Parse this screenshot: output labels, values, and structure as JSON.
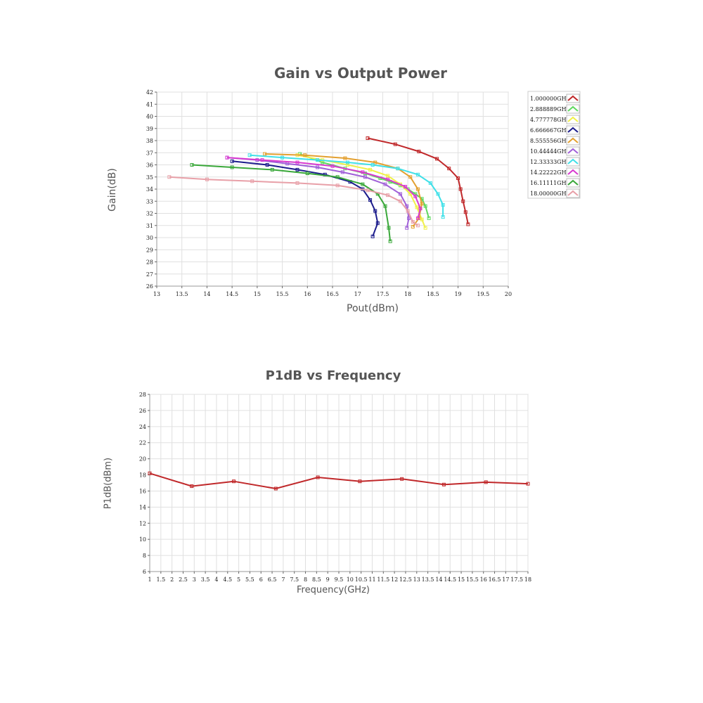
{
  "chart_data": [
    {
      "type": "line",
      "title": "Gain vs Output Power",
      "xlabel": "Pout(dBm)",
      "ylabel": "Gain(dB)",
      "xlim": [
        13,
        20
      ],
      "ylim": [
        26,
        42
      ],
      "xticks": [
        "13",
        "13.5",
        "14",
        "14.5",
        "15",
        "15.5",
        "16",
        "16.5",
        "17",
        "17.5",
        "18",
        "18.5",
        "19",
        "19.5",
        "20"
      ],
      "yticks": [
        "26",
        "27",
        "28",
        "29",
        "30",
        "31",
        "32",
        "33",
        "34",
        "35",
        "36",
        "37",
        "38",
        "39",
        "40",
        "41",
        "42"
      ],
      "grid": true,
      "legend": "right",
      "series": [
        {
          "name": "1.000000GHz",
          "color": "#c0282a",
          "x": [
            17.2,
            17.75,
            18.22,
            18.58,
            18.82,
            19.0,
            19.05,
            19.1,
            19.15,
            19.2
          ],
          "y": [
            38.2,
            37.7,
            37.1,
            36.5,
            35.7,
            34.9,
            34.0,
            33.0,
            32.1,
            31.1
          ]
        },
        {
          "name": "2.888889GHz",
          "color": "#5fd85f",
          "x": [
            15.85,
            16.3,
            16.75,
            17.15,
            17.45,
            17.65,
            17.85,
            18.0,
            18.15,
            18.28,
            18.35,
            18.42
          ],
          "y": [
            36.9,
            36.2,
            35.7,
            35.3,
            34.9,
            34.6,
            34.3,
            34.0,
            33.6,
            33.2,
            32.6,
            31.6
          ]
        },
        {
          "name": "4.777778GHz",
          "color": "#f0f04a",
          "x": [
            15.8,
            16.3,
            16.8,
            17.25,
            17.6,
            17.85,
            18.05,
            18.18,
            18.28,
            18.35
          ],
          "y": [
            36.8,
            36.4,
            36.0,
            35.6,
            35.1,
            34.4,
            33.6,
            32.5,
            31.5,
            30.8
          ]
        },
        {
          "name": "6.666667GHz",
          "color": "#1c1c8c",
          "x": [
            14.5,
            15.2,
            15.8,
            16.35,
            16.85,
            17.1,
            17.25,
            17.35,
            17.4,
            17.3
          ],
          "y": [
            36.3,
            36.0,
            35.6,
            35.2,
            34.6,
            34.0,
            33.1,
            32.2,
            31.2,
            30.1
          ]
        },
        {
          "name": "8.555556GHz",
          "color": "#e3a030",
          "x": [
            15.15,
            15.95,
            16.75,
            17.35,
            17.8,
            18.05,
            18.2,
            18.28,
            18.22,
            18.1
          ],
          "y": [
            36.9,
            36.8,
            36.55,
            36.2,
            35.7,
            35.0,
            34.0,
            32.8,
            31.6,
            30.9
          ]
        },
        {
          "name": "10.44444GHz",
          "color": "#a060d8",
          "x": [
            14.4,
            15.0,
            15.6,
            16.2,
            16.7,
            17.15,
            17.55,
            17.85,
            17.98,
            18.02,
            17.98
          ],
          "y": [
            36.6,
            36.4,
            36.1,
            35.8,
            35.4,
            35.0,
            34.4,
            33.6,
            32.6,
            31.6,
            30.8
          ]
        },
        {
          "name": "12.33333GHz",
          "color": "#40e0e8",
          "x": [
            14.85,
            15.5,
            16.2,
            16.8,
            17.3,
            17.8,
            18.2,
            18.45,
            18.6,
            18.7,
            18.7
          ],
          "y": [
            36.8,
            36.6,
            36.4,
            36.2,
            36.0,
            35.7,
            35.2,
            34.5,
            33.6,
            32.7,
            31.7
          ]
        },
        {
          "name": "14.22222GHz",
          "color": "#d83ad0",
          "x": [
            14.4,
            15.1,
            15.8,
            16.5,
            17.1,
            17.6,
            17.95,
            18.15,
            18.25,
            18.2
          ],
          "y": [
            36.6,
            36.4,
            36.2,
            35.9,
            35.4,
            34.8,
            34.2,
            33.4,
            32.4,
            31.6
          ]
        },
        {
          "name": "16.11111GHz",
          "color": "#3aa83a",
          "x": [
            13.7,
            14.5,
            15.3,
            16.0,
            16.6,
            17.1,
            17.4,
            17.55,
            17.62,
            17.65
          ],
          "y": [
            36.0,
            35.8,
            35.6,
            35.3,
            35.0,
            34.4,
            33.6,
            32.6,
            30.8,
            29.7
          ]
        },
        {
          "name": "18.00000GHz",
          "color": "#e8a0a8",
          "x": [
            13.25,
            14.0,
            14.9,
            15.8,
            16.6,
            17.2,
            17.6,
            17.85,
            18.0,
            18.1,
            18.2
          ],
          "y": [
            35.0,
            34.8,
            34.65,
            34.5,
            34.3,
            33.9,
            33.5,
            33.0,
            32.2,
            31.3,
            31.0
          ]
        }
      ]
    },
    {
      "type": "line",
      "title": "P1dB vs Frequency",
      "xlabel": "Frequency(GHz)",
      "ylabel": "P1dB(dBm)",
      "xlim": [
        1,
        18
      ],
      "ylim": [
        6,
        28
      ],
      "xticks": [
        "1",
        "1.5",
        "2",
        "2.5",
        "3",
        "3.5",
        "4",
        "4.5",
        "5",
        "5.5",
        "6",
        "6.5",
        "7",
        "7.5",
        "8",
        "8.5",
        "9",
        "9.5",
        "10",
        "10.5",
        "11",
        "11.5",
        "12",
        "12.5",
        "13",
        "13.5",
        "14",
        "14.5",
        "15",
        "15.5",
        "16",
        "16.5",
        "17",
        "17.5",
        "18"
      ],
      "yticks": [
        "6",
        "8",
        "10",
        "12",
        "14",
        "16",
        "18",
        "20",
        "22",
        "24",
        "26",
        "28"
      ],
      "grid": true,
      "series": [
        {
          "color": "#c0282a",
          "x": [
            1.0,
            2.888889,
            4.777778,
            6.666667,
            8.555556,
            10.44444,
            12.33333,
            14.22222,
            16.11111,
            18.0
          ],
          "y": [
            18.2,
            16.6,
            17.2,
            16.3,
            17.7,
            17.2,
            17.5,
            16.8,
            17.1,
            16.9
          ]
        }
      ]
    }
  ]
}
